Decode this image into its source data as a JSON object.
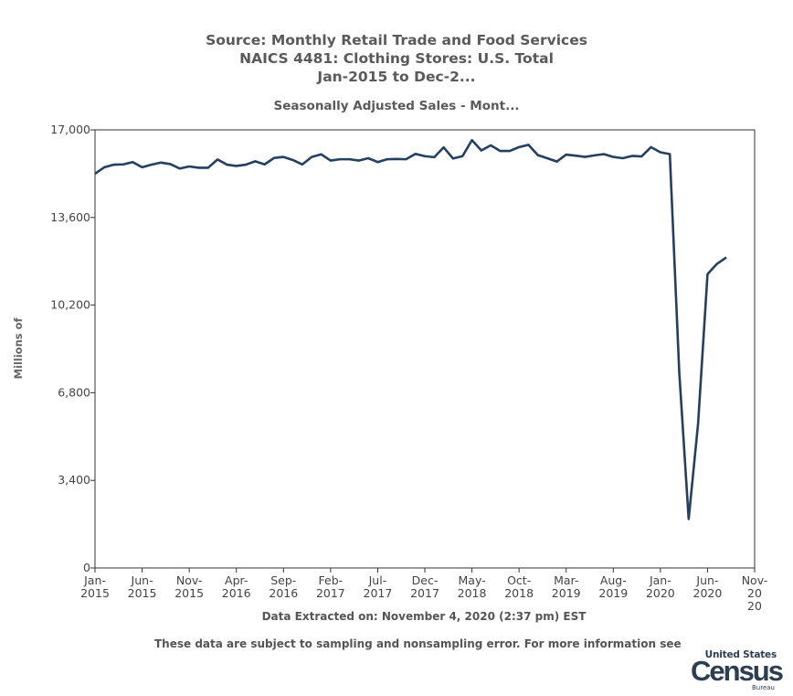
{
  "chart_data": {
    "type": "line",
    "title_lines": [
      "Source: Monthly Retail Trade and Food Services",
      "NAICS 4481: Clothing Stores: U.S. Total",
      "Jan-2015 to Dec-2..."
    ],
    "subtitle": "Seasonally Adjusted Sales - Mont...",
    "ylabel": "Millions of",
    "xlabel": "Data Extracted on: November 4, 2020 (2:37 pm) EST",
    "ylim": [
      0,
      17000
    ],
    "y_ticks": [
      "0",
      "3,400",
      "6,800",
      "10,200",
      "13,600",
      "17,000"
    ],
    "x_ticks": [
      {
        "line1": "Jan-",
        "line2": "2015"
      },
      {
        "line1": "Jun-",
        "line2": "2015"
      },
      {
        "line1": "Nov-",
        "line2": "2015"
      },
      {
        "line1": "Apr-",
        "line2": "2016"
      },
      {
        "line1": "Sep-",
        "line2": "2016"
      },
      {
        "line1": "Feb-",
        "line2": "2017"
      },
      {
        "line1": "Jul-",
        "line2": "2017"
      },
      {
        "line1": "Dec-",
        "line2": "2017"
      },
      {
        "line1": "May-",
        "line2": "2018"
      },
      {
        "line1": "Oct-",
        "line2": "2018"
      },
      {
        "line1": "Mar-",
        "line2": "2019"
      },
      {
        "line1": "Aug-",
        "line2": "2019"
      },
      {
        "line1": "Jan-",
        "line2": "2020"
      },
      {
        "line1": "Jun-",
        "line2": "2020"
      },
      {
        "line1": "Nov-",
        "line2": "20",
        "line3": "20"
      }
    ],
    "x_tick_month_index": [
      0,
      5,
      10,
      15,
      20,
      25,
      30,
      35,
      40,
      45,
      50,
      55,
      60,
      65,
      70
    ],
    "x_month_count": 70,
    "series": [
      {
        "color": "#243f60",
        "values": [
          15300,
          15550,
          15650,
          15660,
          15750,
          15550,
          15650,
          15730,
          15670,
          15500,
          15580,
          15530,
          15530,
          15850,
          15650,
          15600,
          15650,
          15780,
          15660,
          15910,
          15950,
          15830,
          15660,
          15950,
          16050,
          15810,
          15860,
          15860,
          15810,
          15900,
          15750,
          15860,
          15870,
          15860,
          16070,
          15980,
          15940,
          16320,
          15890,
          15980,
          16600,
          16200,
          16400,
          16180,
          16180,
          16330,
          16420,
          16020,
          15900,
          15770,
          16040,
          16000,
          15950,
          16010,
          16060,
          15950,
          15900,
          15990,
          15970,
          16330,
          16130,
          16060,
          7600,
          1900,
          5600,
          11400,
          11800,
          12050
        ]
      }
    ]
  },
  "footer": {
    "disclaimer": "These data are subject to sampling and nonsampling error. For more information see"
  },
  "logo": {
    "line1": "United States",
    "line2": "Census",
    "line3": "Bureau"
  }
}
